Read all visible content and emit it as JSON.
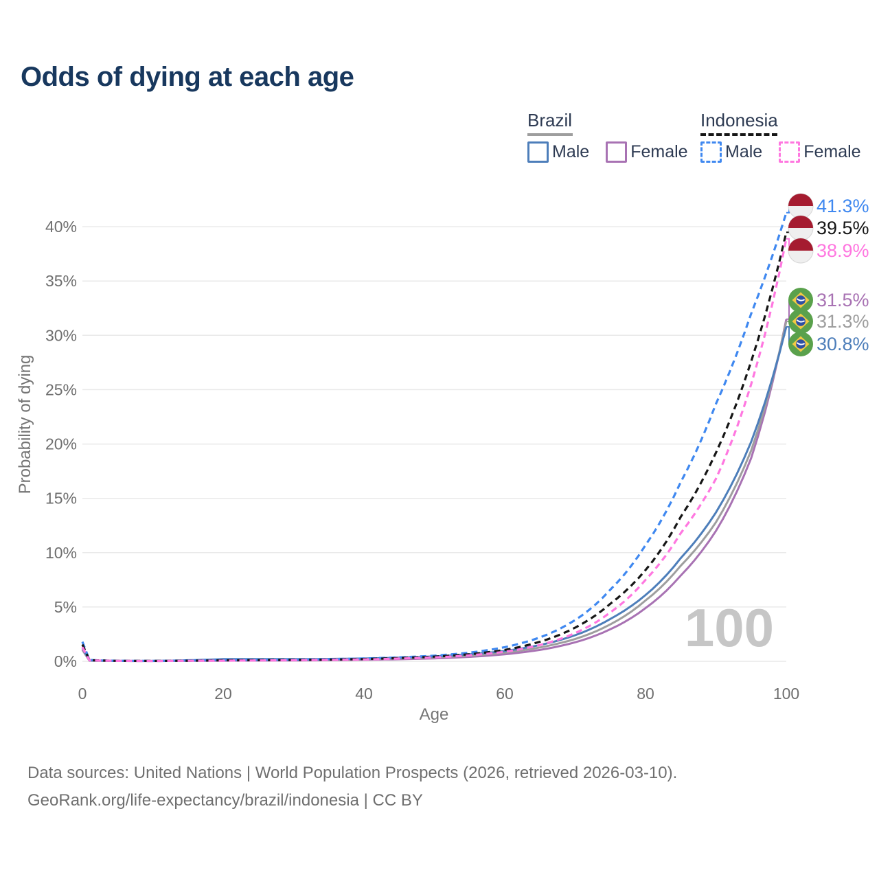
{
  "title": "Odds of dying at each age",
  "legend": {
    "groups": [
      {
        "label": "Brazil",
        "line_style": "solid",
        "color": "#9e9e9e",
        "items": [
          {
            "label": "Male",
            "color": "#4d7eba"
          },
          {
            "label": "Female",
            "color": "#a872b3"
          }
        ]
      },
      {
        "label": "Indonesia",
        "line_style": "dashed",
        "color": "#161616",
        "items": [
          {
            "label": "Male",
            "color": "#3f88f0"
          },
          {
            "label": "Female",
            "color": "#ff77e0"
          }
        ]
      }
    ]
  },
  "watermark": "100",
  "axes": {
    "x": {
      "title": "Age",
      "ticks": [
        "0",
        "20",
        "40",
        "60",
        "80",
        "100"
      ]
    },
    "y": {
      "title": "Probability of dying",
      "ticks": [
        "0%",
        "5%",
        "10%",
        "15%",
        "20%",
        "25%",
        "30%",
        "35%",
        "40%"
      ]
    }
  },
  "footer": {
    "line1": "Data sources: United Nations | World Population Prospects (2026, retrieved 2026-03-10).",
    "line2": "GeoRank.org/life-expectancy/brazil/indonesia | CC BY"
  },
  "chart_data": {
    "type": "line",
    "title": "Odds of dying at each age",
    "xlabel": "Age",
    "ylabel": "Probability of dying",
    "xlim": [
      0,
      100
    ],
    "ylim": [
      0,
      42
    ],
    "grid": true,
    "legend_position": "top-right",
    "ages": [
      0,
      1,
      5,
      10,
      15,
      20,
      25,
      30,
      35,
      40,
      45,
      50,
      55,
      60,
      65,
      70,
      75,
      80,
      85,
      90,
      95,
      100
    ],
    "series": [
      {
        "id": "brazil-female",
        "name": "Brazil Female",
        "color": "#a872b3",
        "dashed": false,
        "values": [
          1.05,
          0.06,
          0.03,
          0.025,
          0.04,
          0.06,
          0.07,
          0.08,
          0.1,
          0.14,
          0.19,
          0.27,
          0.41,
          0.65,
          1.05,
          1.75,
          2.95,
          4.9,
          7.9,
          12.0,
          18.7,
          31.5
        ]
      },
      {
        "id": "brazil-both",
        "name": "Brazil (both sexes)",
        "color": "#9e9e9e",
        "dashed": false,
        "values": [
          1.15,
          0.07,
          0.035,
          0.03,
          0.07,
          0.13,
          0.14,
          0.14,
          0.16,
          0.2,
          0.26,
          0.36,
          0.53,
          0.8,
          1.28,
          2.05,
          3.4,
          5.6,
          8.8,
          12.8,
          19.4,
          31.3
        ]
      },
      {
        "id": "brazil-male",
        "name": "Brazil Male",
        "color": "#4d7eba",
        "dashed": false,
        "values": [
          1.25,
          0.08,
          0.04,
          0.035,
          0.1,
          0.2,
          0.21,
          0.2,
          0.22,
          0.26,
          0.33,
          0.45,
          0.65,
          0.95,
          1.5,
          2.4,
          3.9,
          6.1,
          9.5,
          13.7,
          20.2,
          30.8
        ]
      },
      {
        "id": "indonesia-male",
        "name": "Indonesia Male",
        "color": "#3f88f0",
        "dashed": true,
        "values": [
          1.8,
          0.12,
          0.05,
          0.04,
          0.08,
          0.12,
          0.14,
          0.16,
          0.2,
          0.26,
          0.36,
          0.52,
          0.8,
          1.3,
          2.2,
          3.8,
          6.6,
          10.7,
          16.5,
          23.7,
          32.0,
          41.3
        ]
      },
      {
        "id": "indonesia-both",
        "name": "Indonesia (both sexes)",
        "color": "#161616",
        "dashed": true,
        "values": [
          1.55,
          0.1,
          0.045,
          0.035,
          0.06,
          0.09,
          0.11,
          0.13,
          0.16,
          0.21,
          0.3,
          0.43,
          0.65,
          1.05,
          1.8,
          3.1,
          5.3,
          8.4,
          13.3,
          19.2,
          27.6,
          39.5
        ]
      },
      {
        "id": "indonesia-female",
        "name": "Indonesia Female",
        "color": "#ff77e0",
        "dashed": true,
        "values": [
          1.3,
          0.09,
          0.04,
          0.03,
          0.05,
          0.06,
          0.08,
          0.1,
          0.13,
          0.17,
          0.25,
          0.36,
          0.55,
          0.88,
          1.5,
          2.6,
          4.5,
          7.5,
          11.8,
          16.8,
          25.5,
          38.9
        ]
      }
    ],
    "end_labels": [
      {
        "value": "41.3%",
        "series": "Indonesia Male",
        "flag": "indonesia",
        "color": "#3f88f0"
      },
      {
        "value": "39.5%",
        "series": "Indonesia (both sexes)",
        "flag": "indonesia",
        "color": "#161616"
      },
      {
        "value": "38.9%",
        "series": "Indonesia Female",
        "flag": "indonesia",
        "color": "#ff77e0"
      },
      {
        "value": "31.5%",
        "series": "Brazil Female",
        "flag": "brazil",
        "color": "#a872b3"
      },
      {
        "value": "31.3%",
        "series": "Brazil (both sexes)",
        "flag": "brazil",
        "color": "#9e9e9e"
      },
      {
        "value": "30.8%",
        "series": "Brazil Male",
        "flag": "brazil",
        "color": "#4d7eba"
      }
    ]
  }
}
